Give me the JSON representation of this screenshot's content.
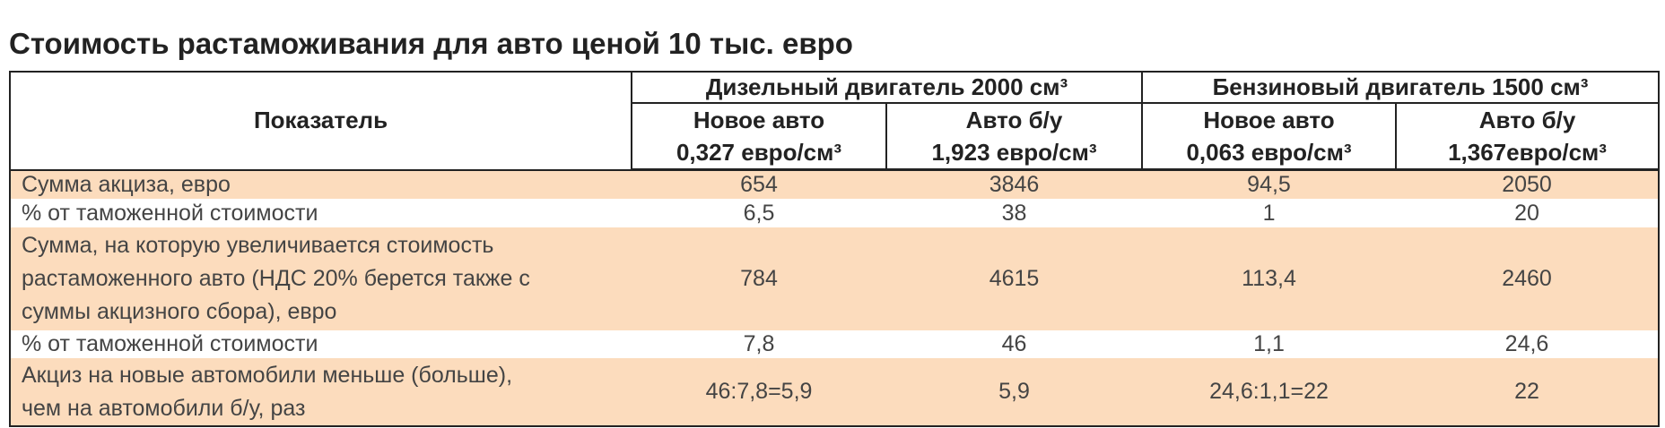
{
  "title": "Стоимость растаможивания для авто ценой 10 тыс. евро",
  "table": {
    "header": {
      "indicator": "Показатель",
      "groups": [
        "Дизельный двигатель 2000 см³",
        "Бензиновый двигатель 1500 см³"
      ],
      "subheaders": [
        {
          "name": "Новое авто",
          "rate": "0,327 евро/см³"
        },
        {
          "name": "Авто б/у",
          "rate": "1,923 евро/см³"
        },
        {
          "name": "Новое авто",
          "rate": "0,063 евро/см³"
        },
        {
          "name": "Авто б/у",
          "rate": "1,367евро/см³"
        }
      ]
    },
    "rows": [
      [
        "Сумма акциза, евро",
        "654",
        "3846",
        "94,5",
        "2050"
      ],
      [
        "% от таможенной стоимости",
        "6,5",
        "38",
        "1",
        "20"
      ],
      [
        "Сумма, на которую увеличивается стоимость растаможенного авто (НДС 20% берется также с суммы акцизного сбора), евро",
        "784",
        "4615",
        "113,4",
        "2460"
      ],
      [
        "% от таможенной стоимости",
        "7,8",
        "46",
        "1,1",
        "24,6"
      ],
      [
        "Акциз на новые автомобили меньше (больше), чем на автомобили б/у, раз",
        "46:7,8=5,9",
        "5,9",
        "24,6:1,1=22",
        "22"
      ]
    ]
  }
}
